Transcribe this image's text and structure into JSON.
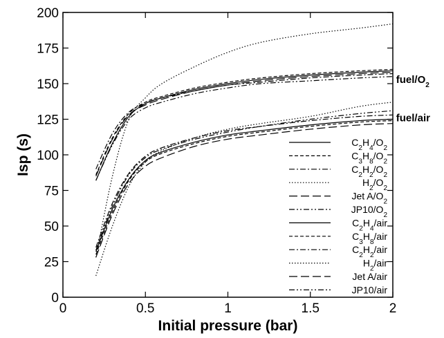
{
  "chart_data": {
    "type": "line",
    "title": "",
    "xlabel": "Initial pressure (bar)",
    "ylabel": "Isp (s)",
    "xlim": [
      0,
      2
    ],
    "ylim": [
      0,
      200
    ],
    "xticks": [
      0,
      0.5,
      1,
      1.5,
      2
    ],
    "yticks": [
      0,
      25,
      50,
      75,
      100,
      125,
      150,
      175,
      200
    ],
    "xtick_labels": [
      "0",
      "0.5",
      "1",
      "1.5",
      "2"
    ],
    "ytick_labels": [
      "0",
      "25",
      "50",
      "75",
      "100",
      "125",
      "150",
      "175",
      "200"
    ],
    "grid": false,
    "legend_position": "lower-right",
    "annotations": [
      {
        "text": "fuel/O",
        "sub": "2",
        "x": 2.02,
        "y": 153
      },
      {
        "text": "fuel/air",
        "sub": "",
        "x": 2.02,
        "y": 126
      }
    ],
    "x": [
      0.2,
      0.3,
      0.4,
      0.5,
      0.6,
      0.8,
      1.0,
      1.2,
      1.5,
      1.8,
      2.0
    ],
    "series": [
      {
        "name": "C2H4/O2",
        "label": [
          [
            "C",
            ""
          ],
          [
            "2",
            "sub"
          ],
          [
            "H",
            ""
          ],
          [
            "4",
            "sub"
          ],
          [
            "/O",
            ""
          ],
          [
            "2",
            "sub"
          ]
        ],
        "dash": "",
        "values": [
          82,
          108,
          127,
          136,
          140,
          146,
          150,
          153,
          156,
          158,
          159
        ]
      },
      {
        "name": "C3H8/O2",
        "label": [
          [
            "C",
            ""
          ],
          [
            "3",
            "sub"
          ],
          [
            "H",
            ""
          ],
          [
            "8",
            "sub"
          ],
          [
            "/O",
            ""
          ],
          [
            "2",
            "sub"
          ]
        ],
        "dash": "5,3",
        "values": [
          86,
          112,
          129,
          137,
          141,
          147,
          151,
          154,
          157,
          159,
          160
        ]
      },
      {
        "name": "C2H2/O2",
        "label": [
          [
            "C",
            ""
          ],
          [
            "2",
            "sub"
          ],
          [
            "H",
            ""
          ],
          [
            "2",
            "sub"
          ],
          [
            "/O",
            ""
          ],
          [
            "2",
            "sub"
          ]
        ],
        "dash": "8,3,2,3",
        "values": [
          90,
          115,
          130,
          136,
          140,
          145,
          149,
          151,
          154,
          156,
          157
        ]
      },
      {
        "name": "H2/O2",
        "label": [
          [
            "H",
            ""
          ],
          [
            "2",
            "sub"
          ],
          [
            "/O",
            ""
          ],
          [
            "2",
            "sub"
          ]
        ],
        "dash": "1.5,2.5",
        "values": [
          28,
          85,
          125,
          140,
          150,
          162,
          172,
          179,
          185,
          189,
          192
        ]
      },
      {
        "name": "Jet A/O2",
        "label": [
          [
            "Jet A/O",
            ""
          ],
          [
            "2",
            "sub"
          ]
        ],
        "dash": "12,5",
        "values": [
          85,
          111,
          128,
          135,
          139,
          145,
          149,
          152,
          155,
          157,
          158
        ]
      },
      {
        "name": "JP10/O2",
        "label": [
          [
            "JP10/O",
            ""
          ],
          [
            "2",
            "sub"
          ]
        ],
        "dash": "8,3,2,3,2,3",
        "values": [
          82,
          107,
          125,
          133,
          137,
          143,
          147,
          150,
          152,
          154,
          155
        ]
      },
      {
        "name": "C2H4/air",
        "label": [
          [
            "C",
            ""
          ],
          [
            "2",
            "sub"
          ],
          [
            "H",
            ""
          ],
          [
            "4",
            "sub"
          ],
          [
            "/air",
            ""
          ]
        ],
        "dash": "",
        "values": [
          32,
          62,
          83,
          96,
          102,
          109,
          114,
          117,
          121,
          124,
          125
        ]
      },
      {
        "name": "C3H8/air",
        "label": [
          [
            "C",
            ""
          ],
          [
            "3",
            "sub"
          ],
          [
            "H",
            ""
          ],
          [
            "8",
            "sub"
          ],
          [
            "/air",
            ""
          ]
        ],
        "dash": "5,3",
        "values": [
          30,
          60,
          82,
          95,
          101,
          108,
          113,
          116,
          120,
          123,
          124
        ]
      },
      {
        "name": "C2H2/air",
        "label": [
          [
            "C",
            ""
          ],
          [
            "2",
            "sub"
          ],
          [
            "H",
            ""
          ],
          [
            "2",
            "sub"
          ],
          [
            "/air",
            ""
          ]
        ],
        "dash": "8,3,2,3",
        "values": [
          35,
          66,
          87,
          99,
          105,
          112,
          117,
          120,
          124,
          127,
          128
        ]
      },
      {
        "name": "H2/air",
        "label": [
          [
            "H",
            ""
          ],
          [
            "2",
            "sub"
          ],
          [
            "/air",
            ""
          ]
        ],
        "dash": "1.5,2.5",
        "values": [
          15,
          50,
          78,
          95,
          103,
          112,
          118,
          122,
          127,
          134,
          137
        ]
      },
      {
        "name": "Jet A/air",
        "label": [
          [
            "Jet A/air",
            ""
          ]
        ],
        "dash": "12,5",
        "values": [
          28,
          58,
          80,
          92,
          98,
          106,
          111,
          114,
          118,
          121,
          122
        ]
      },
      {
        "name": "JP10/air",
        "label": [
          [
            "JP10/air",
            ""
          ]
        ],
        "dash": "8,3,2,3,2,3",
        "values": [
          33,
          64,
          86,
          98,
          104,
          111,
          116,
          120,
          125,
          129,
          131
        ]
      }
    ]
  }
}
